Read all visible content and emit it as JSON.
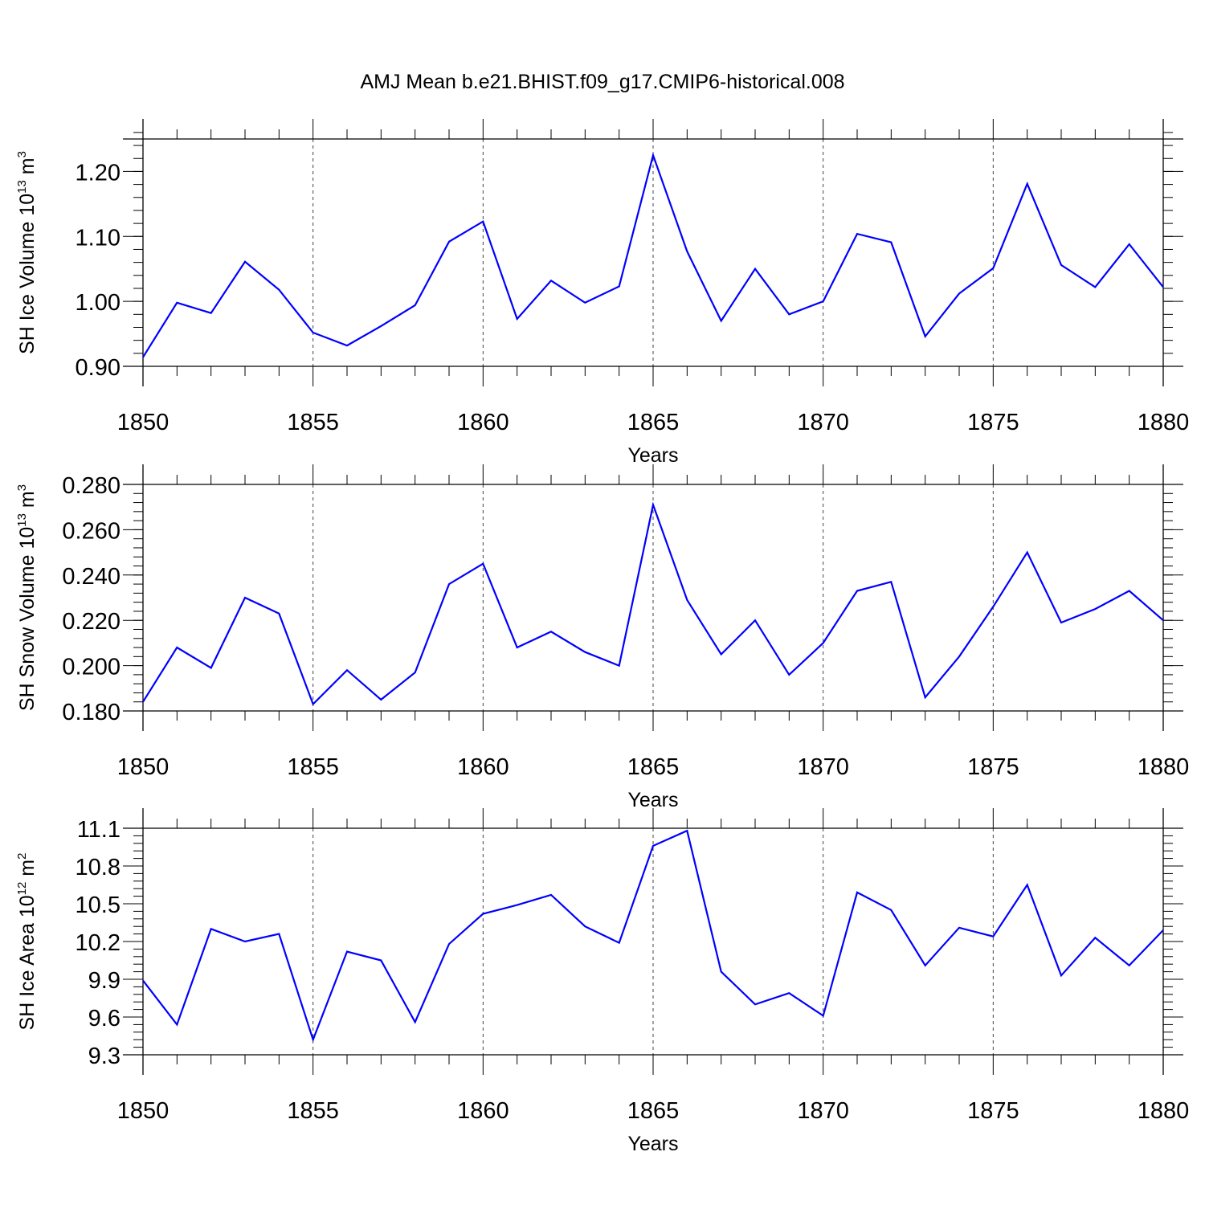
{
  "title": "AMJ Mean b.e21.BHIST.f09_g17.CMIP6-historical.008",
  "line_color": "#0000ff",
  "chart_data": [
    {
      "type": "line",
      "ylabel_prefix": "SH Ice Volume 10",
      "ylabel_exp": "13",
      "ylabel_unit": " m",
      "ylabel_unit_exp": "3",
      "xlabel": "Years",
      "xlim": [
        1850,
        1880
      ],
      "ylim": [
        0.9,
        1.25
      ],
      "xticks": [
        1850,
        1855,
        1860,
        1865,
        1870,
        1875,
        1880
      ],
      "xtick_labels": [
        "1850",
        "1855",
        "1860",
        "1865",
        "1870",
        "1875",
        "1880"
      ],
      "yticks": [
        0.9,
        1.0,
        1.1,
        1.2
      ],
      "ytick_labels": [
        "0.90",
        "1.00",
        "1.10",
        "1.20"
      ],
      "yminor_step": 0.02,
      "grid_x": true,
      "x": [
        1850,
        1851,
        1852,
        1853,
        1854,
        1855,
        1856,
        1857,
        1858,
        1859,
        1860,
        1861,
        1862,
        1863,
        1864,
        1865,
        1866,
        1867,
        1868,
        1869,
        1870,
        1871,
        1872,
        1873,
        1874,
        1875,
        1876,
        1877,
        1878,
        1879,
        1880
      ],
      "y": [
        0.914,
        0.998,
        0.982,
        1.061,
        1.018,
        0.952,
        0.932,
        0.962,
        0.994,
        1.092,
        1.123,
        0.973,
        1.032,
        0.998,
        1.023,
        1.225,
        1.077,
        0.97,
        1.05,
        0.98,
        1.0,
        1.104,
        1.091,
        0.946,
        1.012,
        1.051,
        1.181,
        1.056,
        1.022,
        1.088,
        1.022
      ]
    },
    {
      "type": "line",
      "ylabel_prefix": "SH Snow Volume 10",
      "ylabel_exp": "13",
      "ylabel_unit": " m",
      "ylabel_unit_exp": "3",
      "xlabel": "Years",
      "xlim": [
        1850,
        1880
      ],
      "ylim": [
        0.18,
        0.28
      ],
      "xticks": [
        1850,
        1855,
        1860,
        1865,
        1870,
        1875,
        1880
      ],
      "xtick_labels": [
        "1850",
        "1855",
        "1860",
        "1865",
        "1870",
        "1875",
        "1880"
      ],
      "yticks": [
        0.18,
        0.2,
        0.22,
        0.24,
        0.26,
        0.28
      ],
      "ytick_labels": [
        "0.180",
        "0.200",
        "0.220",
        "0.240",
        "0.260",
        "0.280"
      ],
      "yminor_step": 0.004,
      "grid_x": true,
      "x": [
        1850,
        1851,
        1852,
        1853,
        1854,
        1855,
        1856,
        1857,
        1858,
        1859,
        1860,
        1861,
        1862,
        1863,
        1864,
        1865,
        1866,
        1867,
        1868,
        1869,
        1870,
        1871,
        1872,
        1873,
        1874,
        1875,
        1876,
        1877,
        1878,
        1879,
        1880
      ],
      "y": [
        0.184,
        0.208,
        0.199,
        0.23,
        0.223,
        0.183,
        0.198,
        0.185,
        0.197,
        0.236,
        0.245,
        0.208,
        0.215,
        0.206,
        0.2,
        0.271,
        0.229,
        0.205,
        0.22,
        0.196,
        0.21,
        0.233,
        0.237,
        0.186,
        0.204,
        0.226,
        0.25,
        0.219,
        0.225,
        0.233,
        0.22
      ]
    },
    {
      "type": "line",
      "ylabel_prefix": "SH Ice Area 10",
      "ylabel_exp": "12",
      "ylabel_unit": " m",
      "ylabel_unit_exp": "2",
      "xlabel": "Years",
      "xlim": [
        1850,
        1880
      ],
      "ylim": [
        9.3,
        11.1
      ],
      "xticks": [
        1850,
        1855,
        1860,
        1865,
        1870,
        1875,
        1880
      ],
      "xtick_labels": [
        "1850",
        "1855",
        "1860",
        "1865",
        "1870",
        "1875",
        "1880"
      ],
      "yticks": [
        9.3,
        9.6,
        9.9,
        10.2,
        10.5,
        10.8,
        11.1
      ],
      "ytick_labels": [
        "9.3",
        "9.6",
        "9.9",
        "10.2",
        "10.5",
        "10.8",
        "11.1"
      ],
      "yminor_step": 0.06,
      "grid_x": true,
      "x": [
        1850,
        1851,
        1852,
        1853,
        1854,
        1855,
        1856,
        1857,
        1858,
        1859,
        1860,
        1861,
        1862,
        1863,
        1864,
        1865,
        1866,
        1867,
        1868,
        1869,
        1870,
        1871,
        1872,
        1873,
        1874,
        1875,
        1876,
        1877,
        1878,
        1879,
        1880
      ],
      "y": [
        9.89,
        9.54,
        10.3,
        10.2,
        10.26,
        9.42,
        10.12,
        10.05,
        9.56,
        10.18,
        10.42,
        10.49,
        10.57,
        10.32,
        10.19,
        10.96,
        11.08,
        9.96,
        9.7,
        9.79,
        9.61,
        10.59,
        10.45,
        10.01,
        10.31,
        10.24,
        10.65,
        9.93,
        10.23,
        10.01,
        10.29
      ]
    }
  ]
}
